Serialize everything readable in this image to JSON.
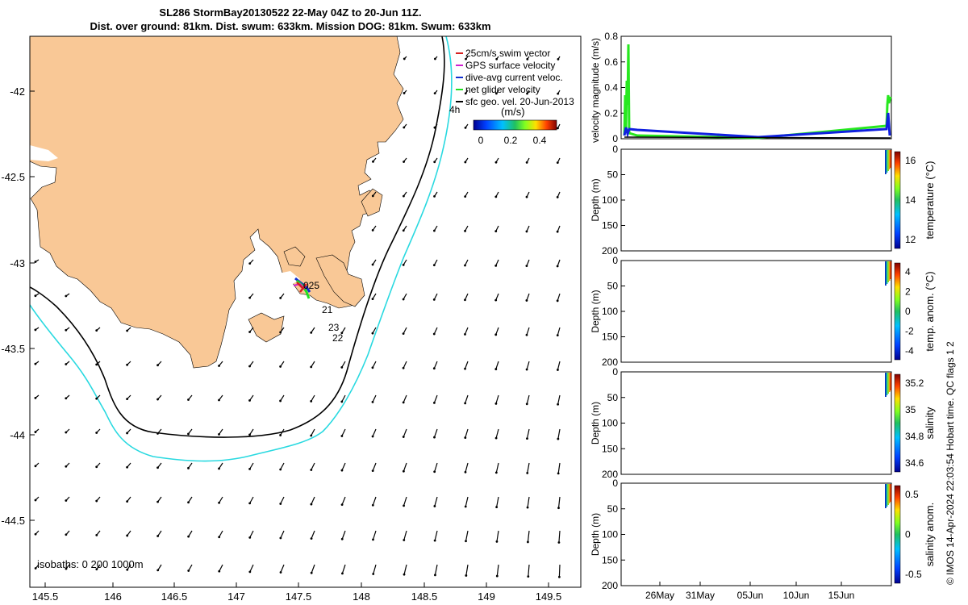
{
  "title_line1": "SL286 StormBay20130522 22-May 04Z to 20-Jun 11Z.",
  "title_line2": "Dist. over ground: 81km. Dist. swum: 633km. Mission DOG: 81km. Swum: 633km",
  "map": {
    "x_ticks": [
      "145.5",
      "146",
      "146.5",
      "147",
      "147.5",
      "148",
      "148.5",
      "149",
      "149.5"
    ],
    "y_ticks": [
      "-42",
      "-42.5",
      "-43",
      "-43.5",
      "-44",
      "-44.5"
    ],
    "legend": [
      {
        "label": "25cm/s swim vector",
        "color": "#d62020"
      },
      {
        "label": "GPS surface velocity",
        "color": "#d020d0"
      },
      {
        "label": "dive-avg current veloc.",
        "color": "#1030d0"
      },
      {
        "label": "net glider velocity",
        "color": "#20e020"
      },
      {
        "label": "sfc geo. vel. 20-Jun-2013",
        "color": "#000000"
      }
    ],
    "colorbar_title": "(m/s)",
    "colorbar_ticks": [
      "0",
      "0.2",
      "0.4"
    ],
    "point_labels": [
      "4h",
      "025",
      "21",
      "23",
      "22"
    ],
    "isobaths_label": "isobaths: 0   200  1000m",
    "land_color": "#f9c896",
    "isobath_200_color": "#000000",
    "isobath_1000_color": "#29d9e0"
  },
  "panels": {
    "velocity": {
      "ylabel": "velocity magnitude (m/s)",
      "y_ticks": [
        "0",
        "0.2",
        "0.4",
        "0.6",
        "0.8"
      ],
      "green_color": "#27e81f",
      "blue_color": "#1020e0"
    },
    "depth_ylabel": "Depth (m)",
    "depth_ticks": [
      "0",
      "50",
      "100",
      "150",
      "200"
    ],
    "temperature": {
      "label": "temperature (°C)",
      "ticks": [
        "16",
        "14",
        "12"
      ]
    },
    "temp_anom": {
      "label": "temp. anom. (°C)",
      "ticks": [
        "4",
        "2",
        "0",
        "-2",
        "-4"
      ]
    },
    "salinity": {
      "label": "salinity",
      "ticks": [
        "35.2",
        "35",
        "34.8",
        "34.6"
      ]
    },
    "sal_anom": {
      "label": "salinity anom.",
      "ticks": [
        "0.5",
        "0",
        "-0.5"
      ]
    },
    "x_ticks": [
      "26May",
      "31May",
      "05Jun",
      "10Jun",
      "15Jun"
    ]
  },
  "credit": "© IMOS 14-Apr-2024 22:03:54 Hobart time. QC flags 1  2"
}
